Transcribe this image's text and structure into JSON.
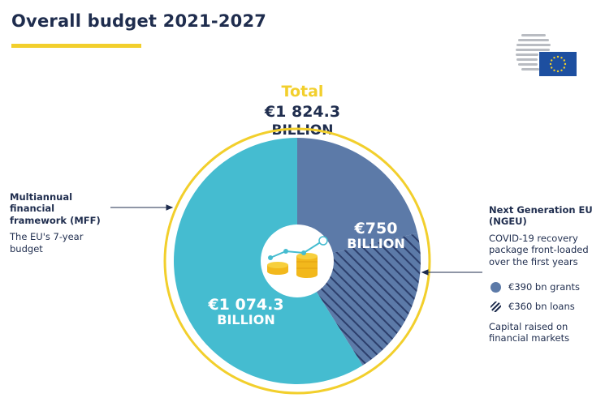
{
  "header": {
    "title": "Overall budget 2021-2027"
  },
  "total": {
    "label": "Total",
    "value": "€1 824.3",
    "unit": "BILLION"
  },
  "chart_data": {
    "type": "pie",
    "title": "Overall budget 2021-2027",
    "total_label": "Total",
    "total_value": 1824.3,
    "unit": "EUR billion",
    "slices": [
      {
        "name": "Multiannual financial framework (MFF)",
        "value": 1074.3,
        "value_text": "€1 074.3",
        "unit_text": "BILLION",
        "color": "#45bcd0"
      },
      {
        "name": "Next Generation EU (NGEU)",
        "value": 750,
        "value_text": "€750",
        "unit_text": "BILLION",
        "color": "#5c7aa8",
        "components": [
          {
            "name": "€390 bn grants",
            "value": 390,
            "pattern": "solid"
          },
          {
            "name": "€360 bn loans",
            "value": 360,
            "pattern": "hatched"
          }
        ]
      }
    ]
  },
  "mff": {
    "heading": [
      "Multiannual",
      "financial",
      "framework (MFF)"
    ],
    "description": [
      "The EU's 7-year",
      "budget"
    ]
  },
  "ngeu": {
    "heading": [
      "Next Generation EU",
      "(NGEU)"
    ],
    "description": [
      "COVID-19 recovery",
      "package front-loaded",
      "over the first years"
    ],
    "legend": [
      {
        "label": "€390 bn grants"
      },
      {
        "label": "€360 bn loans"
      }
    ],
    "footnote": [
      "Capital raised on",
      "financial markets"
    ]
  },
  "colors": {
    "navy": "#1f2d4e",
    "yellow": "#f2cf2c",
    "mff": "#45bcd0",
    "ngeu": "#5c7aa8",
    "hatch": "#2c3e6b",
    "eu_flag": "#1d4fa0"
  },
  "logo": {
    "icon": "eu-council-logo-icon"
  }
}
